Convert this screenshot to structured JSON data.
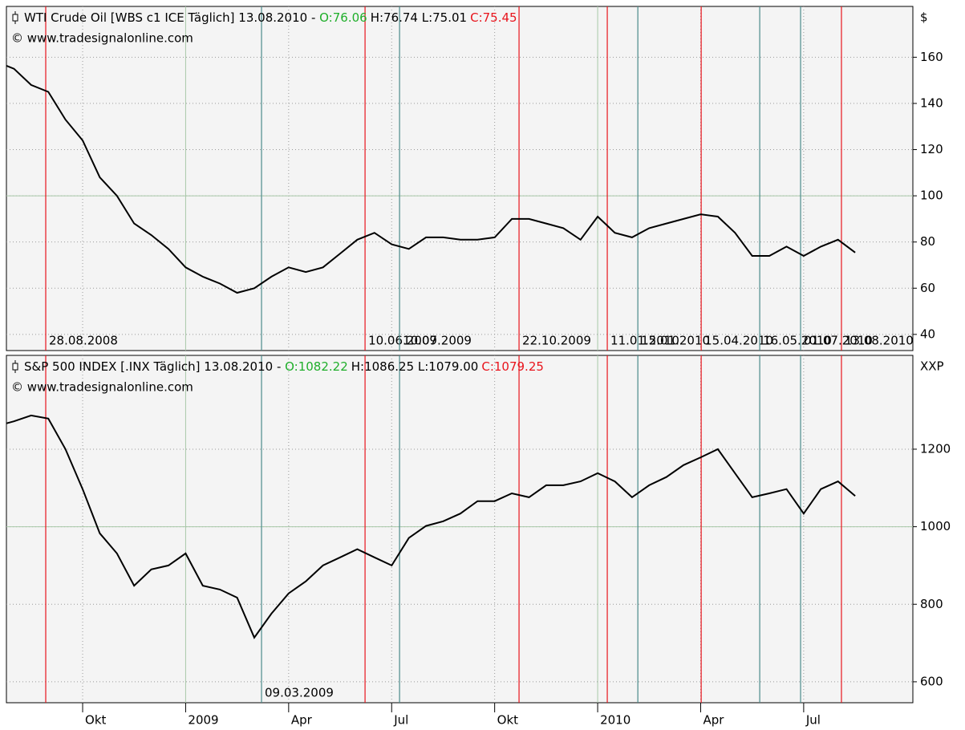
{
  "chart_data": [
    {
      "type": "line",
      "title": "WTI Crude Oil [WBS c1 ICE  Täglich] 13.08.2010 - ",
      "open_label": "O:76.06",
      "high_low_label": "H:76.74 L:75.01",
      "close_label": "C:75.45",
      "source": "© www.tradesignalonline.com",
      "unit": "$",
      "color": "#000000",
      "values": [
        158,
        155,
        148,
        145,
        133,
        124,
        108,
        100,
        88,
        83,
        77,
        69,
        65,
        62,
        58,
        60,
        65,
        69,
        67,
        69,
        75,
        81,
        84,
        79,
        77,
        82,
        82,
        81,
        81,
        82,
        90,
        90,
        88,
        86,
        81,
        91,
        84,
        82,
        86,
        88,
        90,
        92,
        91,
        84,
        74,
        74,
        78,
        74,
        78,
        81,
        75.45
      ],
      "ylim": [
        33,
        182
      ],
      "yticks": [
        40,
        60,
        80,
        100,
        120,
        140,
        160
      ],
      "reference_line": 100,
      "grid": true,
      "markers": [
        {
          "label": "28.08.2008",
          "color": "#e8141c",
          "x": 2.85
        },
        {
          "label": "10.06.2009",
          "color": "#e8141c",
          "x": 21.45
        },
        {
          "label": "10.07.2009",
          "color": "#4a8a8a",
          "x": 23.46
        },
        {
          "label": "22.10.2009",
          "color": "#e8141c",
          "x": 30.42
        },
        {
          "label": "11.01.2010",
          "color": "#e8141c",
          "x": 35.56
        },
        {
          "label": "15.01.2010",
          "color": "#4a8a8a",
          "x": 37.34
        },
        {
          "label": "15.04.2010",
          "color": "#e8141c",
          "x": 41.03
        },
        {
          "label": "16.05.2010",
          "color": "#4a8a8a",
          "x": 44.44
        },
        {
          "label": "01.07.2010",
          "color": "#4a8a8a",
          "x": 46.82
        },
        {
          "label": "13.08.2010",
          "color": "#e8141c",
          "x": 49.2
        }
      ]
    },
    {
      "type": "line",
      "title": "S&P 500 INDEX [.INX  Täglich] 13.08.2010 - ",
      "open_label": "O:1082.22",
      "high_low_label": "H:1086.25 L:1079.00",
      "close_label": "C:1079.25",
      "source": "© www.tradesignalonline.com",
      "unit": "XXP",
      "color": "#000000",
      "categories": [
        null,
        null,
        null,
        null,
        null,
        "Okt",
        null,
        null,
        null,
        null,
        null,
        "2009",
        null,
        null,
        null,
        null,
        null,
        "Apr",
        null,
        null,
        null,
        null,
        null,
        "Jul",
        null,
        null,
        null,
        null,
        null,
        "Okt",
        null,
        null,
        null,
        null,
        null,
        "2010",
        null,
        null,
        null,
        null,
        null,
        "Apr",
        null,
        null,
        null,
        null,
        null,
        "Jul",
        null,
        null,
        null
      ],
      "xlim": [
        0.56,
        53.36
      ],
      "values": [
        1260,
        1272,
        1287,
        1279,
        1200,
        1097,
        983,
        931,
        848,
        890,
        900,
        931,
        848,
        838,
        817,
        714,
        776,
        828,
        859,
        900,
        921,
        942,
        921,
        900,
        971,
        1002,
        1014,
        1034,
        1066,
        1066,
        1086,
        1076,
        1107,
        1107,
        1117,
        1138,
        1117,
        1076,
        1107,
        1128,
        1159,
        1179,
        1200,
        1138,
        1076,
        1086,
        1097,
        1034,
        1097,
        1117,
        1079.25
      ],
      "ylim": [
        546,
        1442
      ],
      "yticks": [
        600,
        800,
        1000,
        1200
      ],
      "reference_line": 1000,
      "grid": true,
      "markers": [
        {
          "label": "09.03.2009",
          "color": "#4a8a8a",
          "x": 15.42
        }
      ]
    }
  ]
}
